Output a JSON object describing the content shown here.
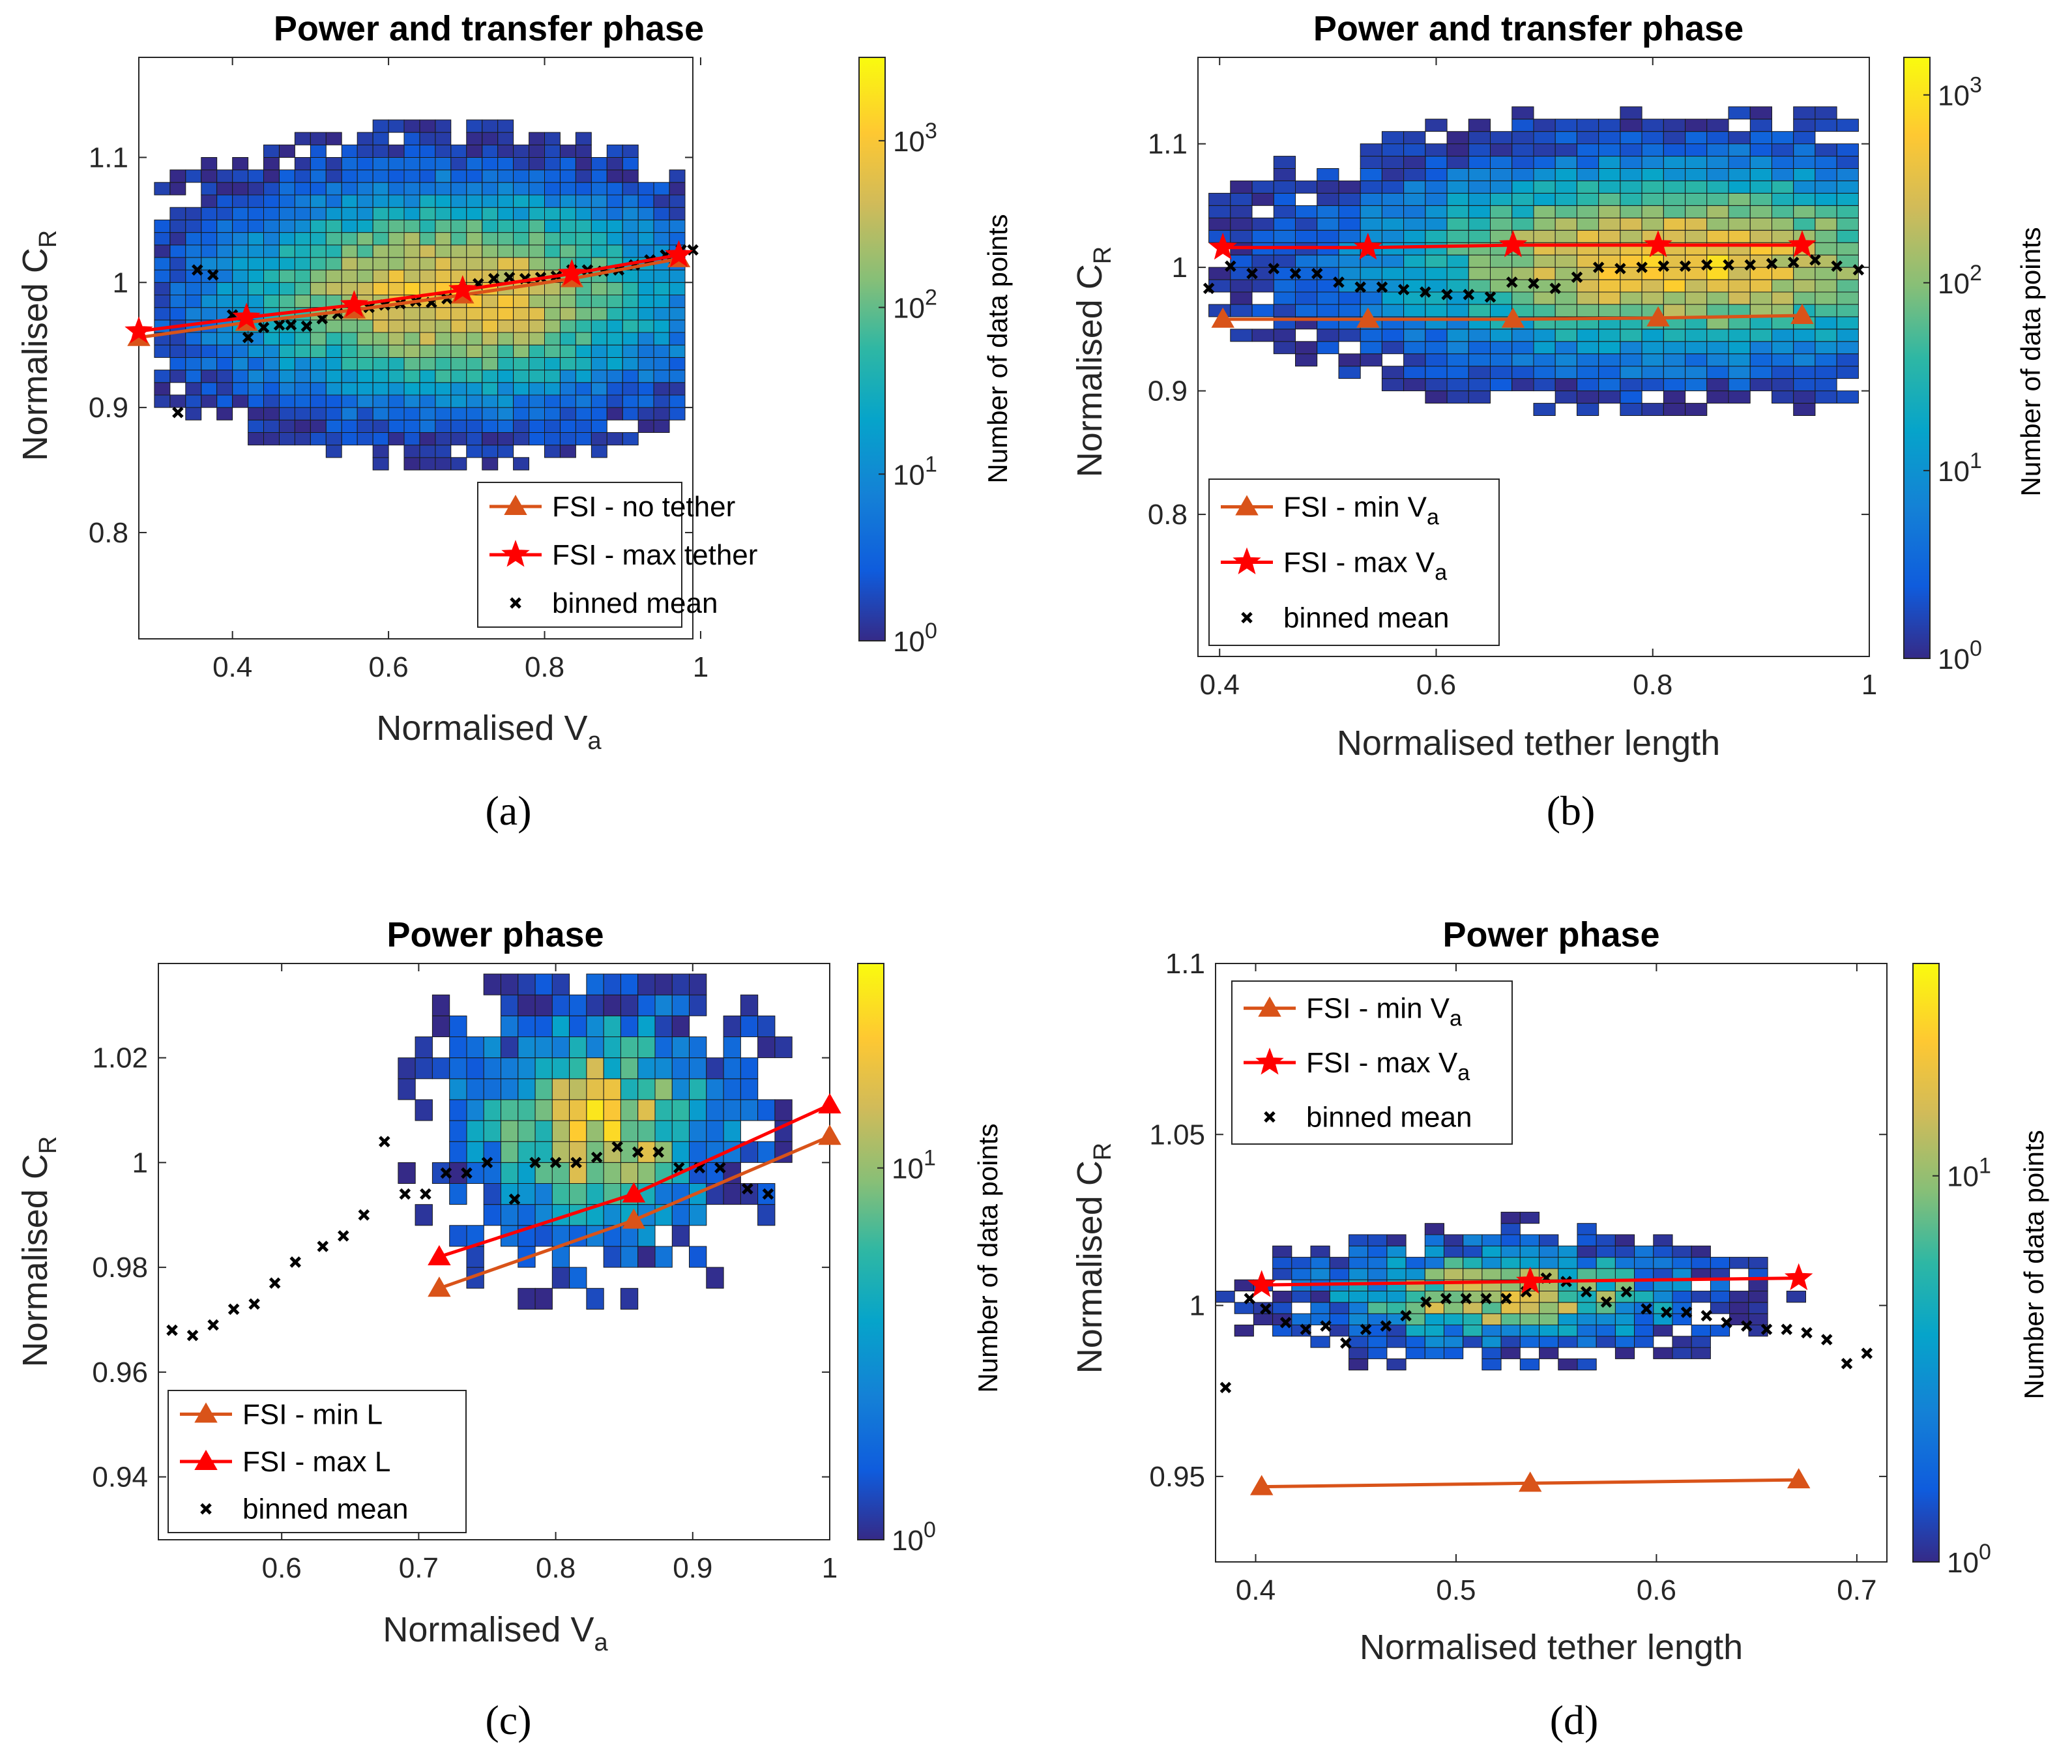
{
  "chart_data": [
    {
      "type": "heatmap",
      "id": "a",
      "title": "Power and transfer phase",
      "caption": "(a)",
      "xlabel": "Normalised V",
      "xlabel_sub": "a",
      "ylabel": "Normalised C",
      "ylabel_sub": "R",
      "xlim": [
        0.28,
        0.99
      ],
      "ylim": [
        0.715,
        1.18
      ],
      "xticks": [
        0.4,
        0.6,
        0.8,
        1
      ],
      "xtick_labels": [
        "0.4",
        "0.6",
        "0.8",
        "1"
      ],
      "yticks": [
        0.8,
        0.9,
        1,
        1.1
      ],
      "ytick_labels": [
        "0.8",
        "0.9",
        "1",
        "1.1"
      ],
      "colorbar": {
        "label": "Number of data points",
        "scale": "log",
        "max_exp": 3.5,
        "tick_bases": [
          "10",
          "10",
          "10",
          "10"
        ],
        "tick_exps": [
          "0",
          "1",
          "2",
          "3"
        ],
        "tick_values": [
          0,
          1,
          2,
          3
        ]
      },
      "legend": {
        "position": "bottom-right",
        "entries": [
          "FSI - no tether",
          "FSI - max tether",
          "binned mean"
        ],
        "entry_subs": [
          "",
          "",
          ""
        ]
      },
      "series": [
        {
          "name": "FSI - no tether",
          "marker": "triangle",
          "color": "#D95319",
          "x": [
            0.28,
            0.418,
            0.556,
            0.695,
            0.835,
            0.972
          ],
          "y": [
            0.956,
            0.968,
            0.978,
            0.99,
            1.003,
            1.019
          ]
        },
        {
          "name": "FSI - max tether",
          "marker": "star",
          "color": "#FF0000",
          "x": [
            0.28,
            0.418,
            0.556,
            0.695,
            0.835,
            0.972
          ],
          "y": [
            0.961,
            0.972,
            0.982,
            0.994,
            1.007,
            1.022
          ]
        }
      ],
      "binned_mean": {
        "x": [
          0.33,
          0.355,
          0.375,
          0.4,
          0.42,
          0.44,
          0.46,
          0.475,
          0.495,
          0.515,
          0.535,
          0.555,
          0.575,
          0.595,
          0.615,
          0.635,
          0.655,
          0.675,
          0.695,
          0.715,
          0.735,
          0.755,
          0.775,
          0.795,
          0.815,
          0.835,
          0.855,
          0.875,
          0.895,
          0.915,
          0.935,
          0.955,
          0.975,
          0.99
        ],
        "y": [
          0.896,
          1.01,
          1.006,
          0.974,
          0.956,
          0.964,
          0.966,
          0.966,
          0.965,
          0.971,
          0.975,
          0.977,
          0.98,
          0.982,
          0.983,
          0.985,
          0.984,
          0.987,
          0.994,
          0.999,
          1.003,
          1.004,
          1.003,
          1.004,
          1.005,
          1.01,
          1.01,
          1.009,
          1.01,
          1.014,
          1.018,
          1.022,
          1.026,
          1.026
        ]
      },
      "heatmap": {
        "xcenter": 0.68,
        "ycenter": 0.99,
        "xwidth": 0.23,
        "ywidth": 0.065,
        "peak_exp": 3.3,
        "x0": 0.3,
        "dx": 0.02,
        "y0": 0.72,
        "dy": 0.01
      }
    },
    {
      "type": "heatmap",
      "id": "b",
      "title": "Power and transfer phase",
      "caption": "(b)",
      "xlabel": "Normalised tether length",
      "xlabel_sub": "",
      "ylabel": "Normalised C",
      "ylabel_sub": "R",
      "xlim": [
        0.38,
        1.0
      ],
      "ylim": [
        0.685,
        1.17
      ],
      "xticks": [
        0.4,
        0.6,
        0.8,
        1
      ],
      "xtick_labels": [
        "0.4",
        "0.6",
        "0.8",
        "1"
      ],
      "yticks": [
        0.8,
        0.9,
        1,
        1.1
      ],
      "ytick_labels": [
        "0.8",
        "0.9",
        "1",
        "1.1"
      ],
      "colorbar": {
        "label": "Number of data points",
        "scale": "log",
        "max_exp": 3.2,
        "tick_bases": [
          "10",
          "10",
          "10",
          "10"
        ],
        "tick_exps": [
          "0",
          "1",
          "2",
          "3"
        ],
        "tick_values": [
          0,
          1,
          2,
          3
        ]
      },
      "legend": {
        "position": "bottom-left",
        "entries": [
          "FSI - min V",
          "FSI - max V",
          "binned mean"
        ],
        "entry_subs": [
          "a",
          "a",
          ""
        ]
      },
      "series": [
        {
          "name": "FSI - min V_a",
          "marker": "triangle",
          "color": "#D95319",
          "x": [
            0.403,
            0.537,
            0.671,
            0.805,
            0.938
          ],
          "y": [
            0.958,
            0.958,
            0.958,
            0.959,
            0.961
          ]
        },
        {
          "name": "FSI - max V_a",
          "marker": "star",
          "color": "#FF0000",
          "x": [
            0.403,
            0.537,
            0.671,
            0.805,
            0.938
          ],
          "y": [
            1.016,
            1.016,
            1.018,
            1.018,
            1.018
          ]
        },
        {
          "name": "binned mean",
          "marker": "x",
          "color": "#000000",
          "x": [
            0.39,
            0.41,
            0.43,
            0.45,
            0.47,
            0.49,
            0.51,
            0.53,
            0.55,
            0.57,
            0.59,
            0.61,
            0.63,
            0.65,
            0.67,
            0.69,
            0.71,
            0.73,
            0.75,
            0.77,
            0.79,
            0.81,
            0.83,
            0.85,
            0.87,
            0.89,
            0.91,
            0.93,
            0.95,
            0.97,
            0.99
          ],
          "y": [
            0.983,
            1.001,
            0.995,
            0.999,
            0.995,
            0.995,
            0.988,
            0.984,
            0.984,
            0.982,
            0.98,
            0.978,
            0.978,
            0.976,
            0.988,
            0.987,
            0.983,
            0.992,
            1.0,
            0.999,
            1.0,
            1.001,
            1.001,
            1.002,
            1.002,
            1.002,
            1.003,
            1.004,
            1.006,
            1.001,
            0.998
          ]
        }
      ],
      "heatmap": {
        "xcenter": 0.82,
        "ycenter": 1.005,
        "xwidth": 0.22,
        "ywidth": 0.06,
        "peak_exp": 3.1,
        "x0": 0.39,
        "dx": 0.02,
        "y0": 0.69,
        "dy": 0.01
      }
    },
    {
      "type": "heatmap",
      "id": "c",
      "title": "Power phase",
      "caption": "(c)",
      "xlabel": "Normalised V",
      "xlabel_sub": "a",
      "ylabel": "Normalised C",
      "ylabel_sub": "R",
      "xlim": [
        0.51,
        1.0
      ],
      "ylim": [
        0.928,
        1.038
      ],
      "xticks": [
        0.6,
        0.7,
        0.8,
        0.9,
        1
      ],
      "xtick_labels": [
        "0.6",
        "0.7",
        "0.8",
        "0.9",
        "1"
      ],
      "yticks": [
        0.94,
        0.96,
        0.98,
        1,
        1.02
      ],
      "ytick_labels": [
        "0.94",
        "0.96",
        "0.98",
        "1",
        "1.02"
      ],
      "colorbar": {
        "label": "Number of data points",
        "scale": "log",
        "max_exp": 1.55,
        "tick_bases": [
          "10",
          "10"
        ],
        "tick_exps": [
          "0",
          "1"
        ],
        "tick_values": [
          0,
          1
        ]
      },
      "legend": {
        "position": "bottom-left",
        "entries": [
          "FSI - min L",
          "FSI - max L",
          "binned mean"
        ],
        "entry_subs": [
          "",
          "",
          ""
        ]
      },
      "series": [
        {
          "name": "FSI - min L",
          "marker": "triangle",
          "color": "#D95319",
          "x": [
            0.715,
            0.857,
            1.0
          ],
          "y": [
            0.976,
            0.989,
            1.005
          ]
        },
        {
          "name": "FSI - max L",
          "marker": "triangle",
          "color": "#FF0000",
          "x": [
            0.715,
            0.857,
            1.0
          ],
          "y": [
            0.982,
            0.994,
            1.011
          ]
        },
        {
          "name": "binned mean",
          "marker": "x",
          "color": "#000000",
          "x": [
            0.52,
            0.535,
            0.55,
            0.565,
            0.58,
            0.595,
            0.61,
            0.63,
            0.645,
            0.66,
            0.675,
            0.69,
            0.705,
            0.72,
            0.735,
            0.75,
            0.77,
            0.785,
            0.8,
            0.815,
            0.83,
            0.845,
            0.86,
            0.875,
            0.89,
            0.905,
            0.92,
            0.94,
            0.955
          ],
          "y": [
            0.968,
            0.967,
            0.969,
            0.972,
            0.973,
            0.977,
            0.981,
            0.984,
            0.986,
            0.99,
            1.004,
            0.994,
            0.994,
            0.998,
            0.998,
            1.0,
            0.993,
            1.0,
            1.0,
            1.0,
            1.001,
            1.003,
            1.002,
            1.002,
            0.999,
            0.999,
            0.999,
            0.995,
            0.994
          ]
        }
      ],
      "heatmap": {
        "xcenter": 0.83,
        "ycenter": 1.007,
        "xwidth": 0.075,
        "ywidth": 0.017,
        "peak_exp": 1.55,
        "x0": 0.51,
        "dx": 0.0125,
        "y0": 0.928,
        "dy": 0.004
      }
    },
    {
      "type": "heatmap",
      "id": "d",
      "title": "Power phase",
      "caption": "(d)",
      "xlabel": "Normalised tether length",
      "xlabel_sub": "",
      "ylabel": "Normalised C",
      "ylabel_sub": "R",
      "xlim": [
        0.38,
        0.715
      ],
      "ylim": [
        0.925,
        1.1
      ],
      "xticks": [
        0.4,
        0.5,
        0.6,
        0.7
      ],
      "xtick_labels": [
        "0.4",
        "0.5",
        "0.6",
        "0.7"
      ],
      "yticks": [
        0.95,
        1,
        1.05,
        1.1
      ],
      "ytick_labels": [
        "0.95",
        "1",
        "1.05",
        "1.1"
      ],
      "colorbar": {
        "label": "Number of data points",
        "scale": "log",
        "max_exp": 1.55,
        "tick_bases": [
          "10",
          "10"
        ],
        "tick_exps": [
          "0",
          "1"
        ],
        "tick_values": [
          0,
          1
        ]
      },
      "legend": {
        "position": "top-left",
        "entries": [
          "FSI - min V",
          "FSI - max V",
          "binned mean"
        ],
        "entry_subs": [
          "a",
          "a",
          ""
        ]
      },
      "series": [
        {
          "name": "FSI - min V_a",
          "marker": "triangle",
          "color": "#D95319",
          "x": [
            0.403,
            0.537,
            0.671
          ],
          "y": [
            0.947,
            0.948,
            0.949
          ]
        },
        {
          "name": "FSI - max V_a",
          "marker": "star",
          "color": "#FF0000",
          "x": [
            0.403,
            0.537,
            0.671
          ],
          "y": [
            1.006,
            1.007,
            1.008
          ]
        },
        {
          "name": "binned mean",
          "marker": "x",
          "color": "#000000",
          "x": [
            0.385,
            0.397,
            0.405,
            0.415,
            0.425,
            0.435,
            0.445,
            0.455,
            0.465,
            0.475,
            0.485,
            0.495,
            0.505,
            0.515,
            0.525,
            0.535,
            0.545,
            0.555,
            0.565,
            0.575,
            0.585,
            0.595,
            0.605,
            0.615,
            0.625,
            0.635,
            0.645,
            0.655,
            0.665,
            0.675,
            0.685,
            0.695,
            0.705
          ],
          "y": [
            0.976,
            1.002,
            0.999,
            0.995,
            0.993,
            0.994,
            0.989,
            0.993,
            0.994,
            0.997,
            1.001,
            1.002,
            1.002,
            1.002,
            1.002,
            1.004,
            1.008,
            1.007,
            1.004,
            1.001,
            1.004,
            0.999,
            0.998,
            0.998,
            0.997,
            0.995,
            0.994,
            0.993,
            0.993,
            0.992,
            0.99,
            0.983,
            0.986
          ]
        }
      ],
      "heatmap": {
        "xcenter": 0.525,
        "ycenter": 1.003,
        "xwidth": 0.07,
        "ywidth": 0.011,
        "peak_exp": 1.55,
        "x0": 0.38,
        "dx": 0.0095,
        "y0": 0.925,
        "dy": 0.0033
      }
    }
  ]
}
